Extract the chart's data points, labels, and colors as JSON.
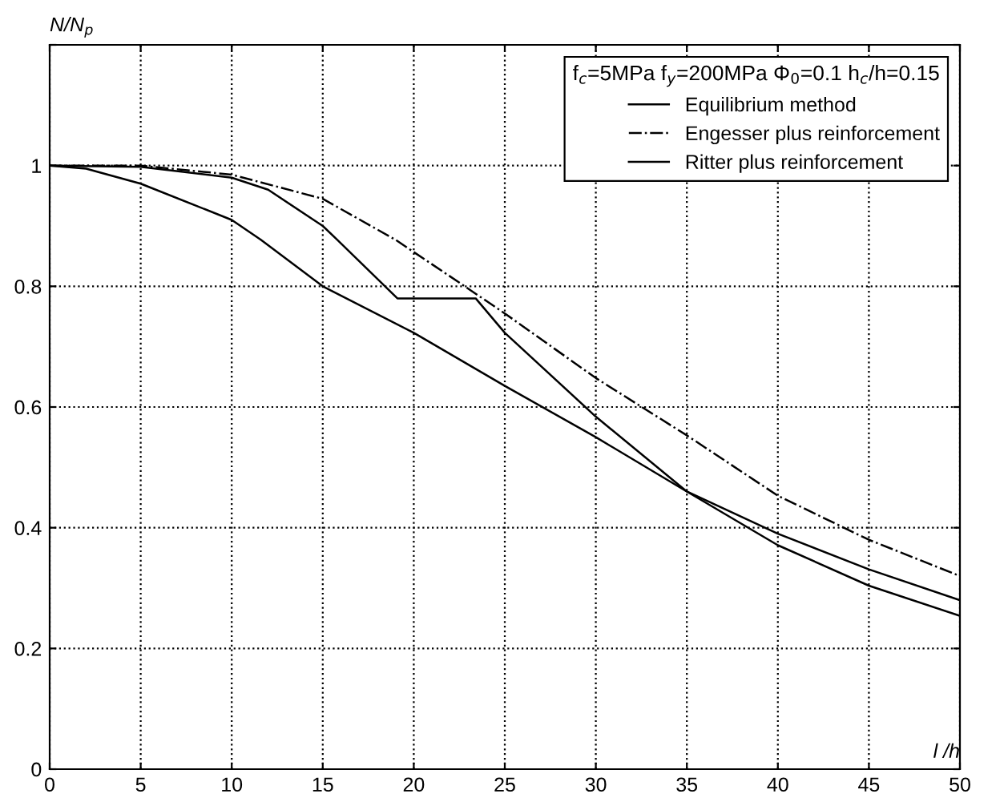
{
  "chart_data": {
    "type": "line",
    "ylabel": "N/N$_{p}$",
    "xlabel": "l /h",
    "legend_title": "f$_{c}$=5MPa f$_{y}$=200MPa Φ$_{0}$=0.1 h$_{c}$/h=0.15",
    "xlim": [
      0,
      50
    ],
    "ylim": [
      0,
      1.2
    ],
    "xticks": [
      0,
      5,
      10,
      15,
      20,
      25,
      30,
      35,
      40,
      45,
      50
    ],
    "yticks": [
      0,
      0.2,
      0.4,
      0.6,
      0.8,
      1,
      {
        "value": 1.2,
        "label": null
      }
    ],
    "grid": true,
    "legend": "top right",
    "marker": "none",
    "series": [
      {
        "name": "Equilibrium method",
        "color": "#000000",
        "line_style": "solid",
        "x": [
          0,
          5,
          10,
          12,
          15,
          15.8,
          19.1,
          23.4,
          25,
          30,
          35,
          40,
          45,
          50
        ],
        "values": [
          1,
          0.998,
          0.98,
          0.96,
          0.9,
          0.877,
          0.78,
          0.78,
          0.723,
          0.584,
          0.46,
          0.371,
          0.304,
          0.254
        ]
      },
      {
        "name": "Engesser plus reinforcement",
        "color": "#000000",
        "line_style": "dashdot",
        "x": [
          0,
          5,
          10,
          15,
          19,
          22.8,
          25,
          30,
          35,
          40,
          45,
          50
        ],
        "values": [
          1,
          1,
          0.985,
          0.945,
          0.877,
          0.8,
          0.755,
          0.648,
          0.553,
          0.453,
          0.38,
          0.32
        ]
      },
      {
        "name": "Ritter plus reinforcement",
        "color": "#000000",
        "line_style": "solid",
        "x": [
          0,
          2,
          5,
          10,
          11.6,
          15,
          20,
          25,
          30,
          35,
          40,
          45,
          50
        ],
        "values": [
          1,
          0.995,
          0.97,
          0.91,
          0.877,
          0.8,
          0.723,
          0.635,
          0.55,
          0.46,
          0.39,
          0.331,
          0.28
        ]
      }
    ]
  }
}
